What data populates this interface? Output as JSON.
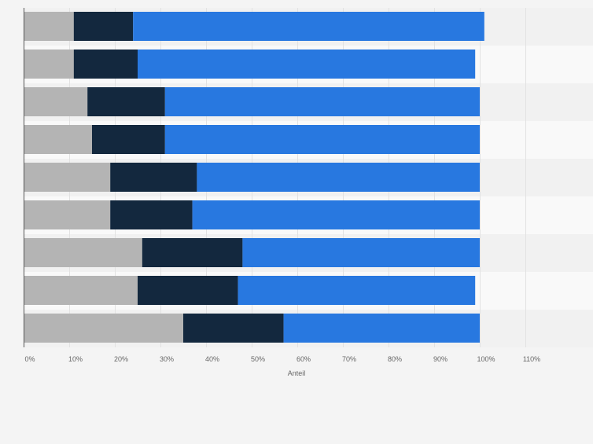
{
  "colors": {
    "page_background": "#f4f4f4",
    "band_light": "#f9f9f9",
    "band_dark": "#f1f1f1",
    "gridline": "#e2e2e2",
    "axis_line": "#555555",
    "tick_label": "#666666",
    "series": [
      "#b4b4b4",
      "#13283e",
      "#2878e0"
    ]
  },
  "chart_data": {
    "type": "bar",
    "orientation": "horizontal",
    "stacked": true,
    "title": "",
    "xlabel": "Anteil",
    "ylabel": "",
    "xlim": [
      0,
      120
    ],
    "x_ticks": [
      0,
      10,
      20,
      30,
      40,
      50,
      60,
      70,
      80,
      90,
      100,
      110
    ],
    "x_tick_labels": [
      "0%",
      "10%",
      "20%",
      "30%",
      "40%",
      "50%",
      "60%",
      "70%",
      "80%",
      "90%",
      "100%",
      "110%"
    ],
    "grid": true,
    "legend": "none",
    "categories": [
      "",
      "",
      "",
      "",
      "",
      "",
      "",
      "",
      ""
    ],
    "series": [
      {
        "name": "",
        "values": [
          11,
          11,
          14,
          15,
          19,
          19,
          26,
          25,
          35
        ]
      },
      {
        "name": "",
        "values": [
          13,
          14,
          17,
          16,
          19,
          18,
          22,
          22,
          22
        ]
      },
      {
        "name": "",
        "values": [
          77,
          74,
          69,
          69,
          62,
          63,
          52,
          52,
          43
        ]
      }
    ]
  }
}
